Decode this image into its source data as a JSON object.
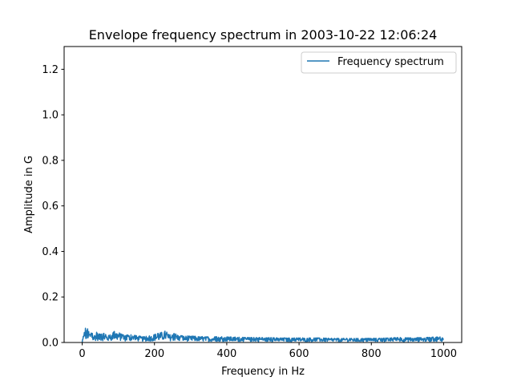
{
  "chart_data": {
    "type": "line",
    "title": "Envelope frequency spectrum in 2003-10-22 12:06:24",
    "xlabel": "Frequency in Hz",
    "ylabel": "Amplitude in G",
    "xlim": [
      -50,
      1050
    ],
    "ylim": [
      0,
      1.3
    ],
    "xticks": [
      0,
      200,
      400,
      600,
      800,
      1000
    ],
    "yticks": [
      0.0,
      0.2,
      0.4,
      0.6,
      0.8,
      1.0,
      1.2
    ],
    "xtick_labels": [
      "0",
      "200",
      "400",
      "600",
      "800",
      "1000"
    ],
    "ytick_labels": [
      "0.0",
      "0.2",
      "0.4",
      "0.6",
      "0.8",
      "1.0",
      "1.2"
    ],
    "grid": false,
    "legend_position": "top-right",
    "colors": {
      "series": "#1f77b4",
      "axes": "#000000",
      "background": "#ffffff"
    },
    "series": [
      {
        "name": "Frequency spectrum",
        "x_start": 0,
        "x_end": 1000,
        "envelope": [
          [
            0,
            0.005
          ],
          [
            2,
            0.02
          ],
          [
            5,
            0.04
          ],
          [
            8,
            0.078
          ],
          [
            12,
            0.045
          ],
          [
            15,
            0.07
          ],
          [
            20,
            0.035
          ],
          [
            25,
            0.055
          ],
          [
            30,
            0.03
          ],
          [
            40,
            0.045
          ],
          [
            50,
            0.035
          ],
          [
            60,
            0.04
          ],
          [
            70,
            0.03
          ],
          [
            80,
            0.035
          ],
          [
            90,
            0.05
          ],
          [
            100,
            0.045
          ],
          [
            110,
            0.035
          ],
          [
            120,
            0.03
          ],
          [
            130,
            0.035
          ],
          [
            150,
            0.03
          ],
          [
            170,
            0.025
          ],
          [
            190,
            0.03
          ],
          [
            200,
            0.035
          ],
          [
            210,
            0.04
          ],
          [
            220,
            0.045
          ],
          [
            230,
            0.052
          ],
          [
            240,
            0.035
          ],
          [
            260,
            0.04
          ],
          [
            270,
            0.03
          ],
          [
            300,
            0.028
          ],
          [
            350,
            0.025
          ],
          [
            400,
            0.025
          ],
          [
            450,
            0.022
          ],
          [
            500,
            0.022
          ],
          [
            550,
            0.02
          ],
          [
            600,
            0.02
          ],
          [
            650,
            0.02
          ],
          [
            700,
            0.018
          ],
          [
            750,
            0.018
          ],
          [
            800,
            0.018
          ],
          [
            850,
            0.02
          ],
          [
            880,
            0.022
          ],
          [
            900,
            0.02
          ],
          [
            950,
            0.022
          ],
          [
            1000,
            0.025
          ]
        ]
      }
    ]
  }
}
